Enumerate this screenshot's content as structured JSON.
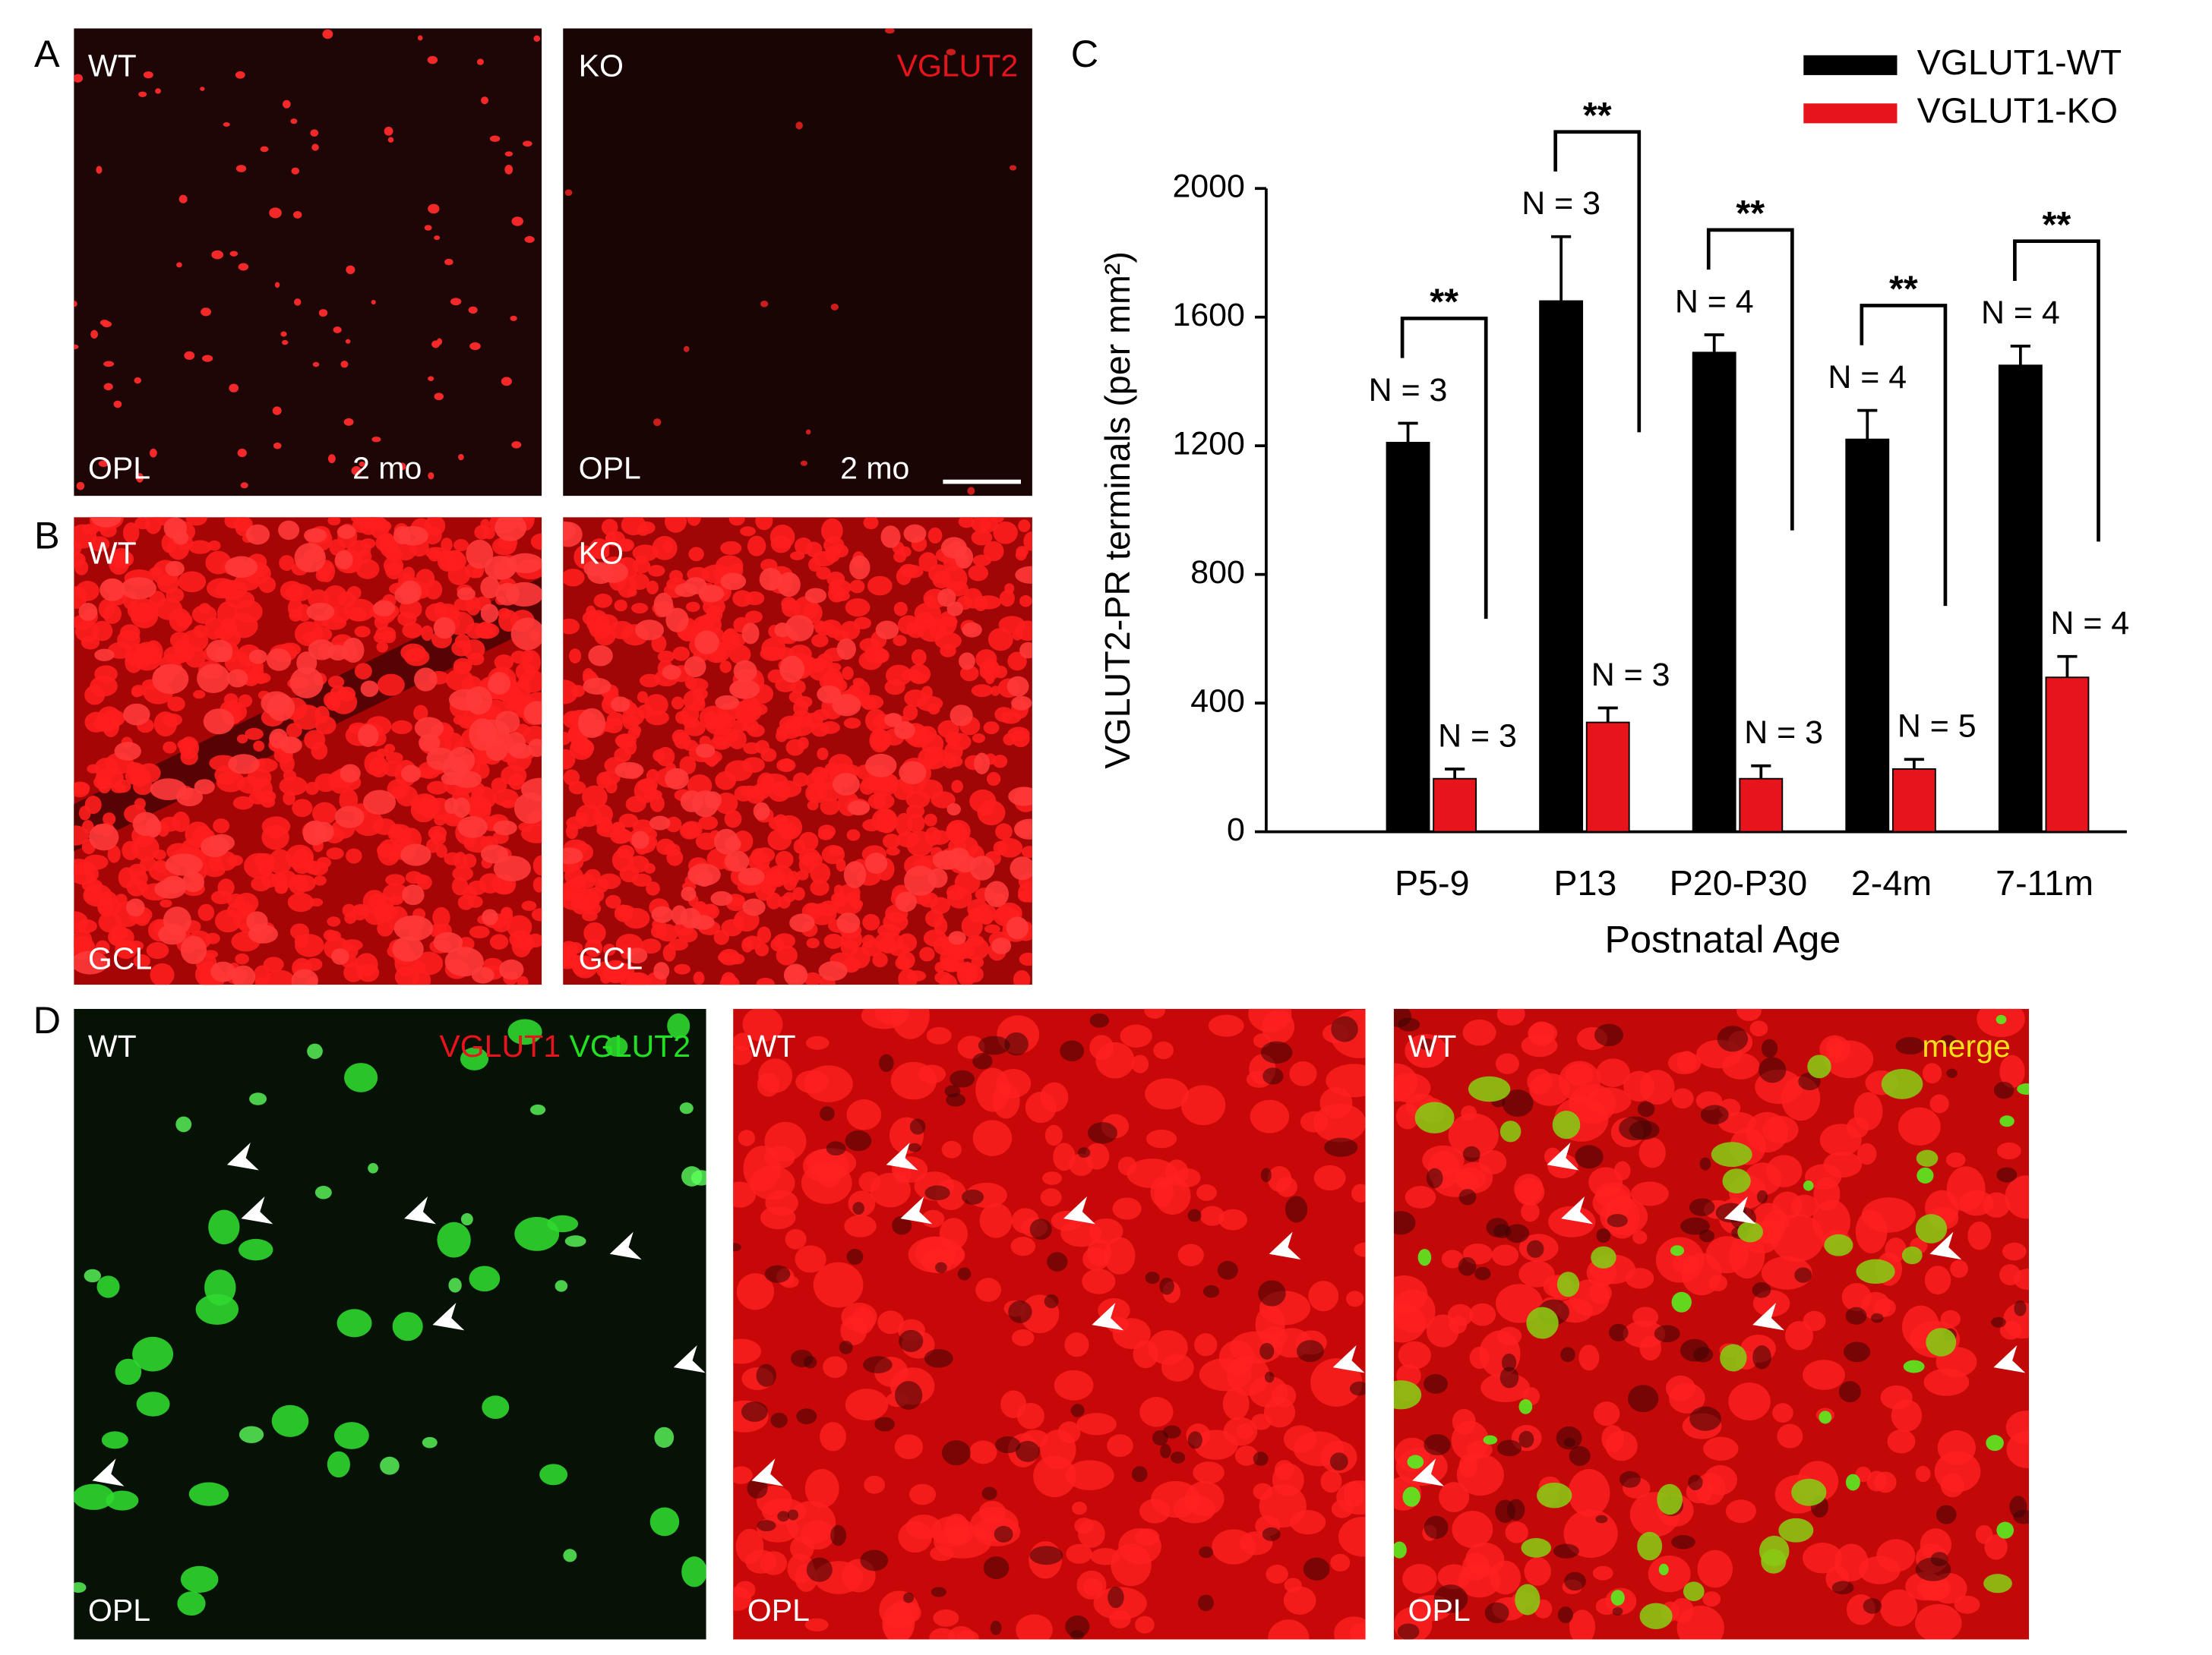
{
  "panel_letters": [
    "A",
    "B",
    "C",
    "D"
  ],
  "panel_a": {
    "wt": "WT",
    "ko": "KO",
    "stain": "VGLUT2",
    "layer_wt": "OPL",
    "layer_ko": "OPL",
    "age_wt": "2 mo",
    "age_ko": "2 mo"
  },
  "panel_b": {
    "wt": "WT",
    "ko": "KO",
    "layer_wt": "GCL",
    "layer_ko": "GCL"
  },
  "panel_d": {
    "genotype": [
      "WT",
      "WT",
      "WT"
    ],
    "stain_red": "VGLUT1",
    "stain_green": "VGLUT2",
    "merge": "merge",
    "layer": [
      "OPL",
      "OPL",
      "OPL"
    ]
  },
  "chart_data": {
    "type": "bar",
    "ylabel": "VGLUT2-PR terminals (per mm²)",
    "xlabel": "Postnatal Age",
    "categories": [
      "P5-9",
      "P13",
      "P20-P30",
      "2-4m",
      "7-11m"
    ],
    "series": [
      {
        "name": "VGLUT1-WT",
        "color": "#000000",
        "values": [
          1210,
          1650,
          1490,
          1220,
          1450
        ],
        "errors": [
          60,
          200,
          55,
          90,
          60
        ],
        "annotations": [
          "N = 3",
          "N = 3",
          "N = 4",
          "N = 4",
          "N = 4"
        ]
      },
      {
        "name": "VGLUT1-KO",
        "color": "#e8141b",
        "values": [
          165,
          340,
          165,
          195,
          480
        ],
        "errors": [
          30,
          45,
          40,
          30,
          65
        ],
        "annotations": [
          "N = 3",
          "N = 3",
          "N = 3",
          "N = 5",
          "N = 4"
        ]
      }
    ],
    "significance": [
      "**",
      "**",
      "**",
      "**",
      "**"
    ],
    "ylim": [
      0,
      2000
    ],
    "yticks": [
      0,
      400,
      800,
      1200,
      1600,
      2000
    ],
    "legend": "top-right"
  }
}
